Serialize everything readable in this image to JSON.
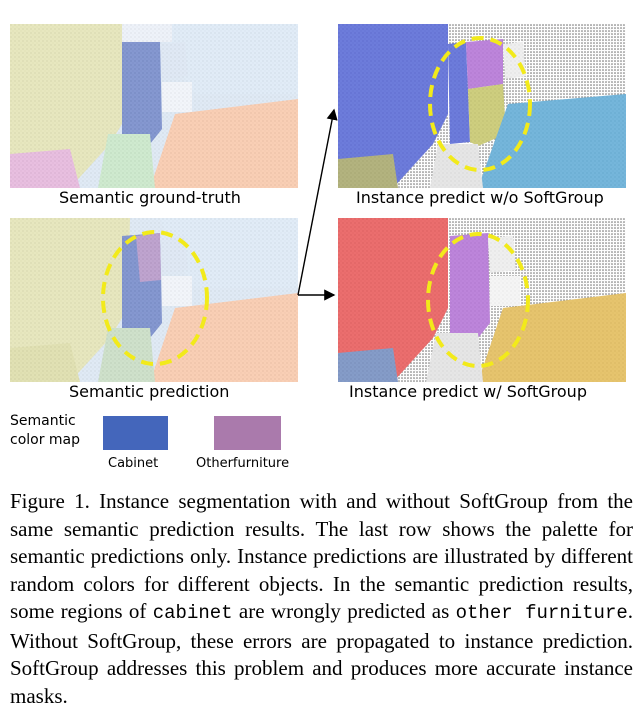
{
  "panels": {
    "top_left_caption": "Semantic ground-truth",
    "bottom_left_caption": "Semantic prediction",
    "top_right_caption": "Instance predict w/o SoftGroup",
    "bottom_right_caption": "Instance predict w/ SoftGroup"
  },
  "legend": {
    "title_line1": "Semantic",
    "title_line2": "color map",
    "items": [
      {
        "label": "Cabinet",
        "color": "#4466bb"
      },
      {
        "label": "Otherfurniture",
        "color": "#aa7aac"
      }
    ]
  },
  "caption": {
    "figure_label": "Figure 1.",
    "part1": " Instance segmentation with and without SoftGroup from the same semantic prediction results. The last row shows the palette for semantic predictions only. Instance predictions are il­lustrated by different random colors for different objects. In the se­mantic prediction results, some regions of ",
    "code1": "cabinet",
    "part2": " are wrongly predicted as ",
    "code2": "other furniture",
    "part3": ". Without SoftGroup, these er­rors are propagated to instance prediction. SoftGroup addresses this problem and produces more accurate instance masks."
  },
  "colors": {
    "highlight_ellipse": "#f2ea1a",
    "semantic_wall": "#d4d48a",
    "semantic_floor_left": "#b5cde6",
    "semantic_floor_right": "#f4a879",
    "semantic_cabinet": "#2244aa",
    "instance_blue": "#1f35c8",
    "instance_olive": "#b3b33a",
    "instance_purple": "#9a44c8",
    "instance_red": "#e02020",
    "instance_lightblue": "#2a8fc8",
    "instance_gold": "#d9a520"
  }
}
